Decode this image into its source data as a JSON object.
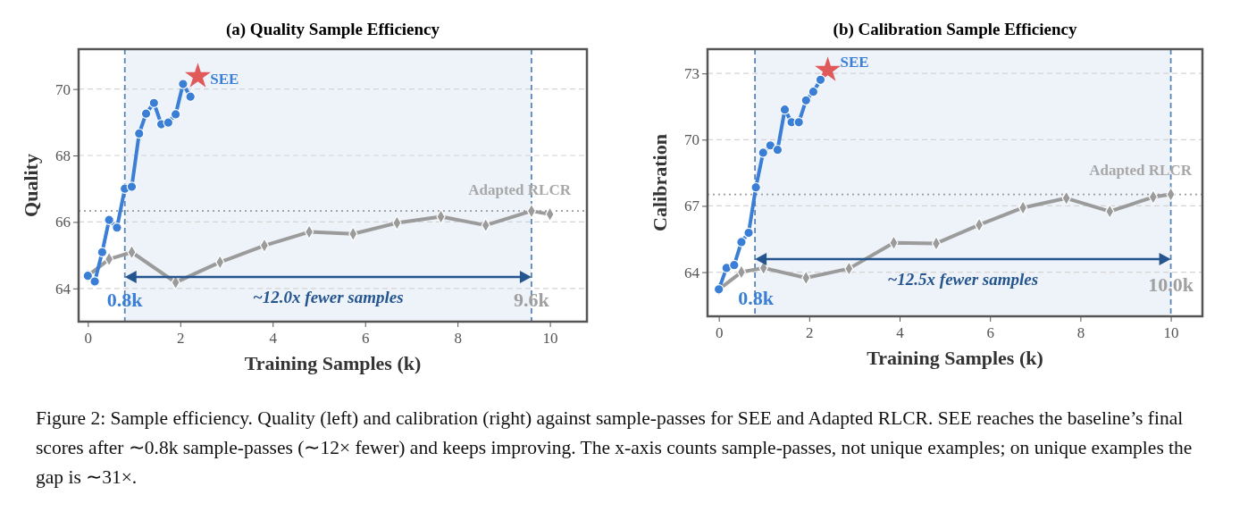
{
  "chart_data": [
    {
      "type": "line",
      "title": "(a) Quality Sample Efficiency",
      "xlabel": "Training Samples (k)",
      "ylabel": "Quality",
      "xlim": [
        -0.2,
        10.8
      ],
      "ylim": [
        63,
        71.2
      ],
      "xticks": [
        0,
        2,
        4,
        6,
        8,
        10
      ],
      "yticks": [
        64,
        66,
        68,
        70
      ],
      "grid": "y",
      "legend": false,
      "line_style": "solid",
      "series": [
        {
          "name": "SEE",
          "color": "#3a7fd5",
          "marker": "circle",
          "x": [
            0,
            0.15,
            0.31,
            0.46,
            0.63,
            0.8,
            0.95,
            1.11,
            1.26,
            1.43,
            1.59,
            1.74,
            1.9,
            2.06,
            2.22
          ],
          "values": [
            64.38,
            64.21,
            65.09,
            66.06,
            65.83,
            67.0,
            67.06,
            68.66,
            69.26,
            69.58,
            68.94,
            68.99,
            69.24,
            70.15,
            69.77
          ]
        },
        {
          "name": "Adapted RLCR",
          "color": "#9b9b9b",
          "marker": "diamond",
          "x": [
            0,
            0.46,
            0.95,
            1.9,
            2.86,
            3.82,
            4.79,
            5.74,
            6.69,
            7.64,
            8.61,
            9.6,
            10
          ],
          "values": [
            64.38,
            64.88,
            65.09,
            64.18,
            64.79,
            65.29,
            65.7,
            65.64,
            65.97,
            66.16,
            65.9,
            66.33,
            66.23
          ]
        },
        {
          "type": "scatter",
          "color": "#e05a5a",
          "marker": "star",
          "x": [
            2.38
          ],
          "values": [
            70.38
          ]
        }
      ],
      "ref_lines": [
        {
          "axis": "y",
          "value": 66.33,
          "color": "#9b9b9b",
          "line_style": "dotted"
        },
        {
          "axis": "x",
          "value": 0.8,
          "color": "#5a86b5",
          "line_style": "dashed"
        },
        {
          "axis": "x",
          "value": 9.6,
          "color": "#5a86b5",
          "line_style": "dashed"
        }
      ],
      "bands": [
        {
          "axis": "x",
          "from": 0.8,
          "to": 9.6,
          "color": "#eef3fa"
        }
      ],
      "annotations": [
        {
          "text": "0.8k",
          "x": 0.8,
          "y": 63.66
        },
        {
          "text": "9.6k",
          "x": 9.6,
          "y": 63.66
        },
        "~12.0x fewer samples"
      ]
    },
    {
      "type": "line",
      "title": "(b) Calibration Sample Efficiency",
      "xlabel": "Training Samples (k)",
      "ylabel": "Calibration",
      "xlim": [
        -0.25,
        10.7
      ],
      "ylim": [
        62,
        74.1
      ],
      "xticks": [
        0,
        2,
        4,
        6,
        8,
        10
      ],
      "yticks": [
        64,
        67,
        70,
        73
      ],
      "grid": "y",
      "legend": false,
      "line_style": "solid",
      "series": [
        {
          "name": "SEE",
          "color": "#3a7fd5",
          "marker": "circle",
          "x": [
            0,
            0.17,
            0.34,
            0.5,
            0.66,
            0.82,
            0.98,
            1.14,
            1.3,
            1.46,
            1.61,
            1.77,
            1.93,
            2.09,
            2.25
          ],
          "values": [
            63.22,
            64.19,
            64.32,
            65.36,
            65.78,
            67.84,
            69.41,
            69.74,
            69.54,
            71.36,
            70.79,
            70.79,
            71.78,
            72.17,
            72.71
          ]
        },
        {
          "name": "Adapted RLCR",
          "color": "#9b9b9b",
          "marker": "diamond",
          "x": [
            0,
            0.5,
            0.99,
            1.93,
            2.88,
            3.87,
            4.81,
            5.76,
            6.73,
            7.69,
            8.65,
            9.61,
            10
          ],
          "values": [
            63.22,
            64.0,
            64.19,
            63.74,
            64.16,
            65.33,
            65.3,
            66.14,
            66.92,
            67.35,
            66.75,
            67.4,
            67.52
          ]
        },
        {
          "type": "scatter",
          "color": "#e05a5a",
          "marker": "star",
          "x": [
            2.41
          ],
          "values": [
            73.15
          ]
        }
      ],
      "ref_lines": [
        {
          "axis": "y",
          "value": 67.52,
          "color": "#9b9b9b",
          "line_style": "dotted"
        },
        {
          "axis": "x",
          "value": 0.8,
          "color": "#5a86b5",
          "line_style": "dashed"
        },
        {
          "axis": "x",
          "value": 10,
          "color": "#5a86b5",
          "line_style": "dashed"
        }
      ],
      "bands": [
        {
          "axis": "x",
          "from": 0.8,
          "to": 10,
          "color": "#eef3fa"
        }
      ],
      "annotations": [
        {
          "text": "0.8k",
          "x": 0.82,
          "y": 62.85
        },
        {
          "text": "10.0k",
          "x": 10,
          "y": 63.46
        },
        "~12.5x fewer samples",
        "Figure 2: Sample efficiency. Quality (left) and calibration (right) against sample-passes for SEE and Adapted RLCR. SEE reaches the baseline’s final scores after ∼0.8k sample-passes (∼12× fewer) and keeps improving. The x-axis counts sample-passes, not unique examples; on unique examples the gap is ∼31×."
      ]
    }
  ]
}
